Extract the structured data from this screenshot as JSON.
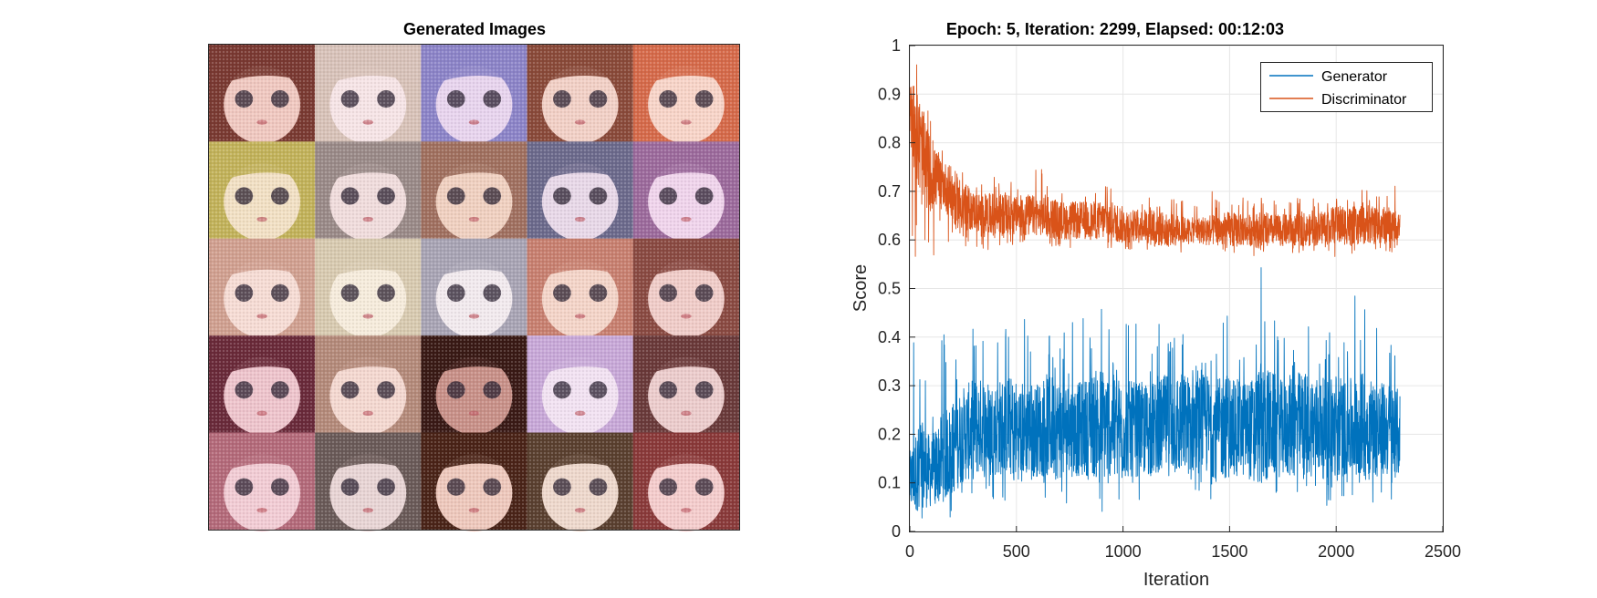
{
  "figure": {
    "left_panel": {
      "title": "Generated Images",
      "grid": {
        "rows": 5,
        "cols": 5
      },
      "tiles": [
        {
          "hair": "#7a3a32",
          "skin": "#f0c8c0"
        },
        {
          "hair": "#d8c2b8",
          "skin": "#f6e4e6"
        },
        {
          "hair": "#8c84c8",
          "skin": "#e8d4ee"
        },
        {
          "hair": "#8a4a3a",
          "skin": "#f2d0c6"
        },
        {
          "hair": "#d66a4a",
          "skin": "#f8d4c8"
        },
        {
          "hair": "#c2b25a",
          "skin": "#f2e0c4"
        },
        {
          "hair": "#9a8a88",
          "skin": "#f0dcdc"
        },
        {
          "hair": "#a07060",
          "skin": "#f0d0c0"
        },
        {
          "hair": "#6c6a8c",
          "skin": "#e8d8e8"
        },
        {
          "hair": "#9c6a9c",
          "skin": "#f0d4ec"
        },
        {
          "hair": "#d0a090",
          "skin": "#f6dcd4"
        },
        {
          "hair": "#d8cab0",
          "skin": "#f6ecdc"
        },
        {
          "hair": "#a8a4b4",
          "skin": "#f2eaee"
        },
        {
          "hair": "#c88070",
          "skin": "#f4d4c8"
        },
        {
          "hair": "#8a4a42",
          "skin": "#f0ccc8"
        },
        {
          "hair": "#6a2a3a",
          "skin": "#eec4cc"
        },
        {
          "hair": "#b48a7a",
          "skin": "#f4d8d0"
        },
        {
          "hair": "#3a1a16",
          "skin": "#c89088"
        },
        {
          "hair": "#c8a8d8",
          "skin": "#f2e2f2"
        },
        {
          "hair": "#6a3a3a",
          "skin": "#eccccc"
        },
        {
          "hair": "#b46a7a",
          "skin": "#f2ccd4"
        },
        {
          "hair": "#6a5a58",
          "skin": "#e8d4d4"
        },
        {
          "hair": "#4a2418",
          "skin": "#eec8bc"
        },
        {
          "hair": "#5a4030",
          "skin": "#eed8cc"
        },
        {
          "hair": "#8a3a3a",
          "skin": "#f4cccc"
        }
      ]
    },
    "colors": {
      "generator": "#0072BD",
      "discriminator": "#D95319",
      "grid": "#e6e6e6",
      "axis": "#262626"
    }
  },
  "chart_data": {
    "type": "line",
    "title": "Epoch: 5, Iteration: 2299, Elapsed: 00:12:03",
    "xlabel": "Iteration",
    "ylabel": "Score",
    "xlim": [
      0,
      2500
    ],
    "ylim": [
      0,
      1
    ],
    "xticks": [
      0,
      500,
      1000,
      1500,
      2000,
      2500
    ],
    "yticks": [
      0,
      0.1,
      0.2,
      0.3,
      0.4,
      0.5,
      0.6,
      0.7,
      0.8,
      0.9,
      1
    ],
    "xtick_labels": [
      "0",
      "500",
      "1000",
      "1500",
      "2000",
      "2500"
    ],
    "ytick_labels": [
      "0",
      "0.1",
      "0.2",
      "0.3",
      "0.4",
      "0.5",
      "0.6",
      "0.7",
      "0.8",
      "0.9",
      "1"
    ],
    "grid": true,
    "legend_position": "top-right",
    "series": [
      {
        "name": "Generator",
        "x": [
          0,
          50,
          100,
          150,
          200,
          250,
          300,
          350,
          400,
          450,
          500,
          550,
          600,
          650,
          700,
          750,
          800,
          850,
          900,
          950,
          1000,
          1050,
          1100,
          1150,
          1200,
          1250,
          1300,
          1350,
          1400,
          1450,
          1500,
          1550,
          1600,
          1650,
          1700,
          1750,
          1800,
          1850,
          1900,
          1950,
          2000,
          2050,
          2100,
          2150,
          2200,
          2250,
          2299
        ],
        "y": [
          0.1,
          0.14,
          0.12,
          0.15,
          0.17,
          0.2,
          0.21,
          0.22,
          0.21,
          0.22,
          0.21,
          0.21,
          0.21,
          0.22,
          0.21,
          0.21,
          0.21,
          0.22,
          0.22,
          0.22,
          0.21,
          0.21,
          0.21,
          0.21,
          0.22,
          0.22,
          0.22,
          0.22,
          0.22,
          0.21,
          0.22,
          0.21,
          0.21,
          0.22,
          0.22,
          0.21,
          0.22,
          0.22,
          0.22,
          0.21,
          0.22,
          0.21,
          0.22,
          0.22,
          0.21,
          0.21,
          0.2
        ],
        "min_envelope": [
          0.0,
          0.0,
          0.01,
          0.01,
          0.02,
          0.05,
          0.05,
          0.07,
          0.06,
          0.06,
          0.05,
          0.06,
          0.06,
          0.05,
          0.05,
          0.06,
          0.06,
          0.06,
          0.03,
          0.06,
          0.05,
          0.06,
          0.06,
          0.06,
          0.06,
          0.05,
          0.06,
          0.06,
          0.06,
          0.05,
          0.05,
          0.06,
          0.05,
          0.02,
          0.05,
          0.06,
          0.05,
          0.05,
          0.06,
          0.05,
          0.05,
          0.06,
          0.05,
          0.06,
          0.06,
          0.06,
          0.06
        ],
        "max_envelope": [
          0.56,
          0.36,
          0.32,
          0.44,
          0.41,
          0.42,
          0.42,
          0.42,
          0.48,
          0.42,
          0.42,
          0.45,
          0.51,
          0.43,
          0.42,
          0.44,
          0.46,
          0.41,
          0.49,
          0.42,
          0.44,
          0.46,
          0.43,
          0.42,
          0.44,
          0.45,
          0.42,
          0.44,
          0.44,
          0.46,
          0.58,
          0.44,
          0.42,
          0.58,
          0.46,
          0.44,
          0.42,
          0.42,
          0.44,
          0.45,
          0.43,
          0.44,
          0.51,
          0.54,
          0.46,
          0.41,
          0.42
        ]
      },
      {
        "name": "Discriminator",
        "x": [
          0,
          50,
          100,
          150,
          200,
          250,
          300,
          350,
          400,
          450,
          500,
          550,
          600,
          650,
          700,
          750,
          800,
          850,
          900,
          950,
          1000,
          1050,
          1100,
          1150,
          1200,
          1250,
          1300,
          1350,
          1400,
          1450,
          1500,
          1550,
          1600,
          1650,
          1700,
          1750,
          1800,
          1850,
          1900,
          1950,
          2000,
          2050,
          2100,
          2150,
          2200,
          2250,
          2299
        ],
        "y": [
          0.88,
          0.78,
          0.73,
          0.72,
          0.69,
          0.67,
          0.66,
          0.65,
          0.65,
          0.65,
          0.65,
          0.65,
          0.65,
          0.65,
          0.64,
          0.64,
          0.64,
          0.64,
          0.64,
          0.64,
          0.63,
          0.63,
          0.63,
          0.63,
          0.62,
          0.62,
          0.62,
          0.62,
          0.62,
          0.62,
          0.62,
          0.62,
          0.62,
          0.62,
          0.62,
          0.62,
          0.62,
          0.62,
          0.62,
          0.63,
          0.63,
          0.63,
          0.63,
          0.63,
          0.63,
          0.63,
          0.63
        ],
        "min_envelope": [
          0.55,
          0.58,
          0.56,
          0.58,
          0.58,
          0.58,
          0.58,
          0.58,
          0.58,
          0.58,
          0.59,
          0.58,
          0.59,
          0.58,
          0.58,
          0.58,
          0.58,
          0.58,
          0.58,
          0.58,
          0.57,
          0.58,
          0.58,
          0.56,
          0.57,
          0.57,
          0.58,
          0.58,
          0.57,
          0.57,
          0.56,
          0.57,
          0.57,
          0.56,
          0.57,
          0.57,
          0.57,
          0.57,
          0.57,
          0.57,
          0.56,
          0.57,
          0.57,
          0.57,
          0.57,
          0.57,
          0.59
        ],
        "max_envelope": [
          1.0,
          0.95,
          0.84,
          0.79,
          0.78,
          0.75,
          0.72,
          0.72,
          0.74,
          0.74,
          0.72,
          0.74,
          0.76,
          0.72,
          0.71,
          0.72,
          0.72,
          0.72,
          0.72,
          0.72,
          0.72,
          0.7,
          0.71,
          0.7,
          0.7,
          0.71,
          0.7,
          0.7,
          0.7,
          0.7,
          0.7,
          0.7,
          0.68,
          0.69,
          0.68,
          0.7,
          0.69,
          0.68,
          0.7,
          0.68,
          0.69,
          0.7,
          0.71,
          0.71,
          0.7,
          0.74,
          0.7
        ]
      }
    ]
  }
}
